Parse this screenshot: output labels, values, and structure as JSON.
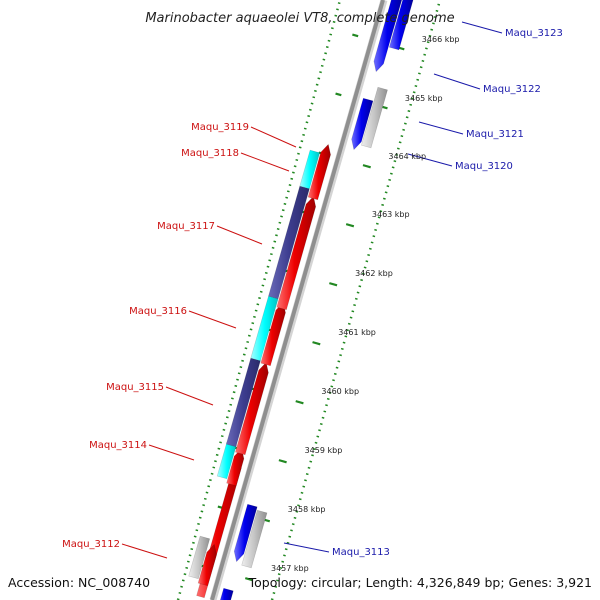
{
  "title": "Marinobacter aquaeolei VT8, complete genome",
  "accession": "Accession: NC_008740",
  "topology": "Topology: circular; Length: 4,326,849 bp; Genes: 3,921",
  "colors": {
    "forward": "#0000ee",
    "reverse": "#ee0000",
    "cds_light": "#00ffff",
    "cds_dark": "#3d3d8f",
    "rna": "#c0c0c0",
    "backbone": "#8f8f8f",
    "tick": "#228822",
    "label_forward": "#1a1aaa",
    "label_reverse": "#cc1111"
  },
  "scale_ticks": [
    "3457 kbp",
    "3458 kbp",
    "3459 kbp",
    "3460 kbp",
    "3461 kbp",
    "3462 kbp",
    "3463 kbp",
    "3464 kbp",
    "3465 kbp",
    "3466 kbp"
  ],
  "gene_labels_forward": [
    "Maqu_3123",
    "Maqu_3122",
    "Maqu_3121",
    "Maqu_3120",
    "Maqu_3113"
  ],
  "gene_labels_reverse": [
    "Maqu_3119",
    "Maqu_3118",
    "Maqu_3117",
    "Maqu_3116",
    "Maqu_3115",
    "Maqu_3114",
    "Maqu_3112"
  ]
}
